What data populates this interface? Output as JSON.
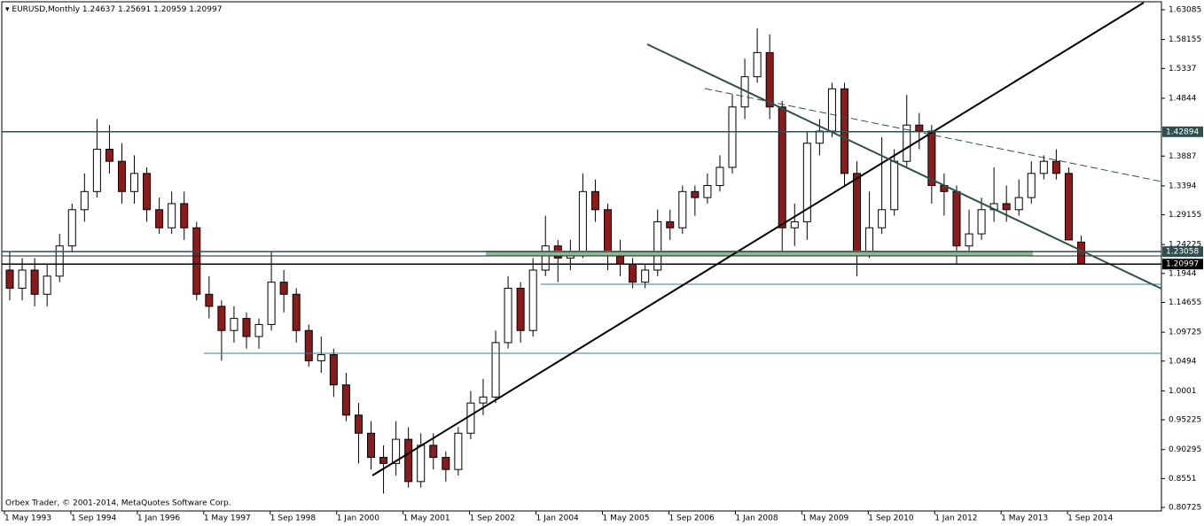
{
  "chart_data": {
    "type": "candlestick",
    "symbol": "EURUSD,Monthly",
    "copyright": "Orbex Trader, © 2001-2014, MetaQuotes Software Corp.",
    "up_color": "#ffffff",
    "down_color": "#8b1a1a",
    "outline_color": "#000000",
    "x": [
      "1993-05",
      "1993-08",
      "1993-11",
      "1994-02",
      "1994-05",
      "1994-08",
      "1994-11",
      "1995-02",
      "1995-05",
      "1995-08",
      "1995-11",
      "1996-02",
      "1996-05",
      "1996-08",
      "1996-11",
      "1997-02",
      "1997-05",
      "1997-08",
      "1997-11",
      "1998-02",
      "1998-05",
      "1998-08",
      "1998-11",
      "1999-02",
      "1999-05",
      "1999-08",
      "1999-11",
      "2000-02",
      "2000-05",
      "2000-08",
      "2000-11",
      "2001-02",
      "2001-05",
      "2001-08",
      "2001-11",
      "2002-02",
      "2002-05",
      "2002-08",
      "2002-11",
      "2003-02",
      "2003-05",
      "2003-08",
      "2003-11",
      "2004-02",
      "2004-05",
      "2004-08",
      "2004-11",
      "2005-02",
      "2005-05",
      "2005-08",
      "2005-11",
      "2006-02",
      "2006-05",
      "2006-08",
      "2006-11",
      "2007-02",
      "2007-05",
      "2007-08",
      "2007-11",
      "2008-02",
      "2008-05",
      "2008-08",
      "2008-11",
      "2009-02",
      "2009-05",
      "2009-08",
      "2009-11",
      "2010-02",
      "2010-05",
      "2010-08",
      "2010-11",
      "2011-02",
      "2011-05",
      "2011-08",
      "2011-11",
      "2012-02",
      "2012-05",
      "2012-08",
      "2012-11",
      "2013-02",
      "2013-05",
      "2013-08",
      "2013-11",
      "2014-02",
      "2014-05",
      "2014-08",
      "2014-11"
    ],
    "candles": [
      [
        1.2,
        1.23,
        1.15,
        1.17
      ],
      [
        1.17,
        1.22,
        1.15,
        1.2
      ],
      [
        1.2,
        1.22,
        1.14,
        1.16
      ],
      [
        1.16,
        1.21,
        1.14,
        1.19
      ],
      [
        1.19,
        1.26,
        1.18,
        1.24
      ],
      [
        1.24,
        1.31,
        1.23,
        1.3
      ],
      [
        1.3,
        1.36,
        1.28,
        1.33
      ],
      [
        1.33,
        1.45,
        1.32,
        1.4
      ],
      [
        1.4,
        1.44,
        1.36,
        1.38
      ],
      [
        1.38,
        1.41,
        1.31,
        1.33
      ],
      [
        1.33,
        1.39,
        1.31,
        1.36
      ],
      [
        1.36,
        1.37,
        1.28,
        1.3
      ],
      [
        1.3,
        1.32,
        1.26,
        1.27
      ],
      [
        1.27,
        1.33,
        1.26,
        1.31
      ],
      [
        1.31,
        1.33,
        1.25,
        1.27
      ],
      [
        1.27,
        1.28,
        1.15,
        1.16
      ],
      [
        1.16,
        1.19,
        1.12,
        1.14
      ],
      [
        1.14,
        1.15,
        1.05,
        1.1
      ],
      [
        1.1,
        1.14,
        1.08,
        1.12
      ],
      [
        1.12,
        1.13,
        1.07,
        1.09
      ],
      [
        1.09,
        1.12,
        1.07,
        1.11
      ],
      [
        1.11,
        1.23,
        1.1,
        1.18
      ],
      [
        1.18,
        1.2,
        1.13,
        1.16
      ],
      [
        1.16,
        1.17,
        1.08,
        1.1
      ],
      [
        1.1,
        1.11,
        1.04,
        1.05
      ],
      [
        1.05,
        1.09,
        1.03,
        1.06
      ],
      [
        1.06,
        1.07,
        0.99,
        1.01
      ],
      [
        1.01,
        1.03,
        0.95,
        0.96
      ],
      [
        0.96,
        0.98,
        0.88,
        0.93
      ],
      [
        0.93,
        0.95,
        0.87,
        0.89
      ],
      [
        0.89,
        0.91,
        0.83,
        0.88
      ],
      [
        0.88,
        0.95,
        0.86,
        0.92
      ],
      [
        0.92,
        0.94,
        0.84,
        0.85
      ],
      [
        0.85,
        0.93,
        0.84,
        0.91
      ],
      [
        0.91,
        0.93,
        0.87,
        0.89
      ],
      [
        0.89,
        0.9,
        0.85,
        0.87
      ],
      [
        0.87,
        0.94,
        0.86,
        0.93
      ],
      [
        0.93,
        1.0,
        0.92,
        0.98
      ],
      [
        0.98,
        1.02,
        0.96,
        0.99
      ],
      [
        0.99,
        1.1,
        0.98,
        1.08
      ],
      [
        1.08,
        1.19,
        1.07,
        1.17
      ],
      [
        1.17,
        1.18,
        1.08,
        1.1
      ],
      [
        1.1,
        1.22,
        1.09,
        1.2
      ],
      [
        1.2,
        1.29,
        1.19,
        1.24
      ],
      [
        1.24,
        1.25,
        1.18,
        1.22
      ],
      [
        1.22,
        1.25,
        1.2,
        1.23
      ],
      [
        1.23,
        1.36,
        1.22,
        1.33
      ],
      [
        1.33,
        1.35,
        1.28,
        1.3
      ],
      [
        1.3,
        1.31,
        1.2,
        1.23
      ],
      [
        1.23,
        1.25,
        1.19,
        1.21
      ],
      [
        1.21,
        1.22,
        1.17,
        1.18
      ],
      [
        1.18,
        1.21,
        1.17,
        1.2
      ],
      [
        1.2,
        1.3,
        1.19,
        1.28
      ],
      [
        1.28,
        1.3,
        1.25,
        1.27
      ],
      [
        1.27,
        1.34,
        1.26,
        1.33
      ],
      [
        1.33,
        1.34,
        1.29,
        1.32
      ],
      [
        1.32,
        1.36,
        1.31,
        1.34
      ],
      [
        1.34,
        1.39,
        1.33,
        1.37
      ],
      [
        1.37,
        1.49,
        1.36,
        1.47
      ],
      [
        1.47,
        1.55,
        1.45,
        1.52
      ],
      [
        1.52,
        1.6,
        1.51,
        1.56
      ],
      [
        1.56,
        1.59,
        1.45,
        1.47
      ],
      [
        1.47,
        1.48,
        1.23,
        1.27
      ],
      [
        1.27,
        1.31,
        1.24,
        1.28
      ],
      [
        1.28,
        1.43,
        1.25,
        1.41
      ],
      [
        1.41,
        1.45,
        1.39,
        1.43
      ],
      [
        1.43,
        1.51,
        1.42,
        1.5
      ],
      [
        1.5,
        1.51,
        1.34,
        1.36
      ],
      [
        1.36,
        1.38,
        1.19,
        1.23
      ],
      [
        1.23,
        1.33,
        1.22,
        1.27
      ],
      [
        1.27,
        1.42,
        1.26,
        1.3
      ],
      [
        1.3,
        1.4,
        1.29,
        1.38
      ],
      [
        1.38,
        1.49,
        1.37,
        1.44
      ],
      [
        1.44,
        1.46,
        1.4,
        1.43
      ],
      [
        1.43,
        1.44,
        1.31,
        1.34
      ],
      [
        1.34,
        1.36,
        1.29,
        1.33
      ],
      [
        1.33,
        1.34,
        1.21,
        1.24
      ],
      [
        1.24,
        1.3,
        1.23,
        1.26
      ],
      [
        1.26,
        1.32,
        1.25,
        1.3
      ],
      [
        1.3,
        1.37,
        1.28,
        1.31
      ],
      [
        1.31,
        1.34,
        1.28,
        1.3
      ],
      [
        1.3,
        1.35,
        1.29,
        1.32
      ],
      [
        1.32,
        1.38,
        1.31,
        1.36
      ],
      [
        1.36,
        1.39,
        1.35,
        1.38
      ],
      [
        1.38,
        1.4,
        1.35,
        1.36
      ],
      [
        1.36,
        1.37,
        1.25,
        1.25
      ],
      [
        1.24637,
        1.25691,
        1.20959,
        1.20997
      ]
    ],
    "ylim": [
      0.8014,
      1.6426
    ],
    "yticks": [
      0.80725,
      0.8551,
      0.90295,
      0.95225,
      1.0001,
      1.0494,
      1.09725,
      1.14655,
      1.1944,
      1.24225,
      1.29155,
      1.3394,
      1.3887,
      1.4844,
      1.5337,
      1.58155,
      1.63085
    ],
    "xlim": [
      "1993-05",
      "2015-10"
    ],
    "xticks": [
      {
        "value": "1993-05",
        "label": "1 May 1993"
      },
      {
        "value": "1994-09",
        "label": "1 Sep 1994"
      },
      {
        "value": "1996-01",
        "label": "1 Jan 1996"
      },
      {
        "value": "1997-05",
        "label": "1 May 1997"
      },
      {
        "value": "1998-09",
        "label": "1 Sep 1998"
      },
      {
        "value": "2000-01",
        "label": "1 Jan 2000"
      },
      {
        "value": "2001-05",
        "label": "1 May 2001"
      },
      {
        "value": "2002-09",
        "label": "1 Sep 2002"
      },
      {
        "value": "2004-01",
        "label": "1 Jan 2004"
      },
      {
        "value": "2005-05",
        "label": "1 May 2005"
      },
      {
        "value": "2006-09",
        "label": "1 Sep 2006"
      },
      {
        "value": "2008-01",
        "label": "1 Jan 2008"
      },
      {
        "value": "2009-05",
        "label": "1 May 2009"
      },
      {
        "value": "2010-09",
        "label": "1 Sep 2010"
      },
      {
        "value": "2012-01",
        "label": "1 Jan 2012"
      },
      {
        "value": "2013-05",
        "label": "1 May 2013"
      },
      {
        "value": "2014-09",
        "label": "1 Sep 2014"
      }
    ],
    "price_labels": [
      {
        "value": 1.42894,
        "color": "#2f4f4f"
      },
      {
        "value": 1.23058,
        "color": "#2f4f4f"
      },
      {
        "value": 1.20997,
        "color": "#000000"
      }
    ]
  }
}
